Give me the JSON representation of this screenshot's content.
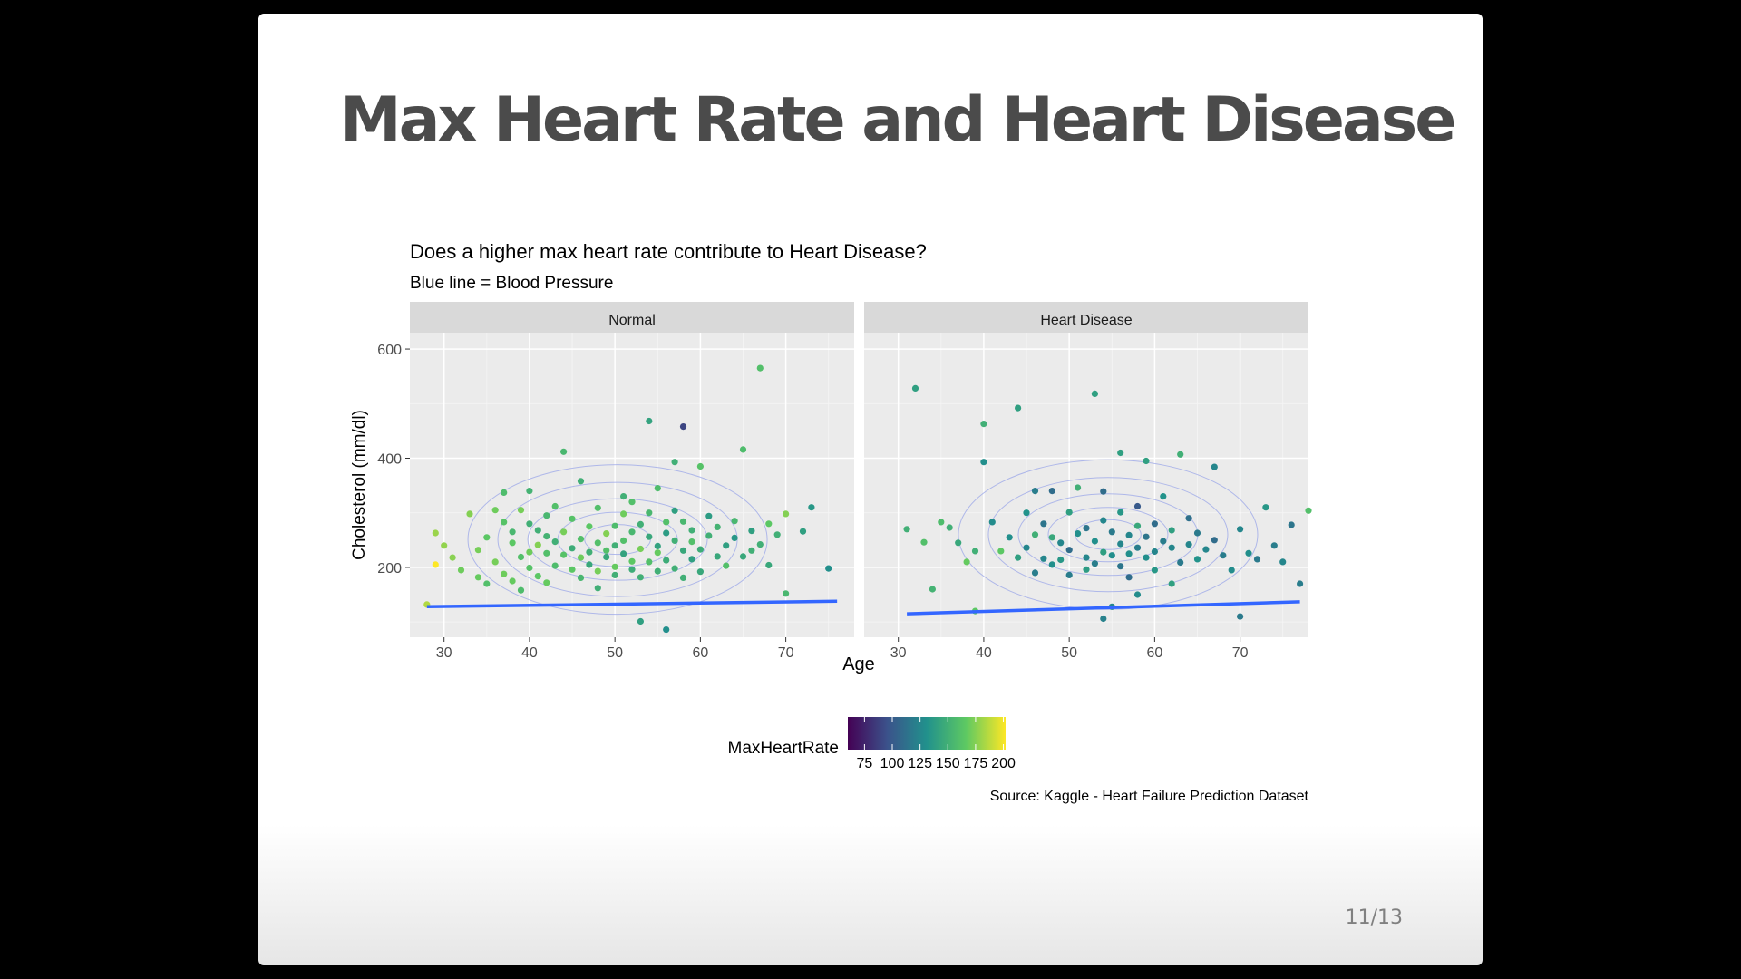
{
  "slide": {
    "title": "Max Heart Rate and Heart Disease",
    "page_number": "11/13"
  },
  "chart_data": {
    "type": "scatter",
    "title": "Does a higher max heart rate contribute to Heart Disease?",
    "subtitle": "Blue line = Blood Pressure",
    "xlabel": "Age",
    "ylabel": "Cholesterol (mm/dl)",
    "caption": "Source: Kaggle - Heart Failure Prediction Dataset",
    "xlim": [
      26,
      78
    ],
    "ylim": [
      72,
      630
    ],
    "x_ticks": [
      30,
      40,
      50,
      60,
      70
    ],
    "y_ticks": [
      200,
      400,
      600
    ],
    "grid": true,
    "panel_background": "#ebebeb",
    "strip_background": "#d9d9d9",
    "line_color": "#3366ff",
    "contour_color": "#9aa6e8",
    "legend": {
      "title": "MaxHeartRate",
      "position": "bottom",
      "min": 60,
      "max": 202,
      "ticks": [
        75,
        100,
        125,
        150,
        175,
        200
      ],
      "colors": [
        "#440154",
        "#3b528b",
        "#21918c",
        "#5ec962",
        "#fde725"
      ]
    },
    "panels": [
      {
        "label": "Normal",
        "bp_line": [
          [
            28,
            128
          ],
          [
            76,
            138
          ]
        ],
        "points": [
          [
            28,
            132,
            185
          ],
          [
            29,
            205,
            202
          ],
          [
            29,
            263,
            180
          ],
          [
            30,
            240,
            178
          ],
          [
            31,
            218,
            176
          ],
          [
            32,
            195,
            170
          ],
          [
            33,
            298,
            175
          ],
          [
            34,
            182,
            168
          ],
          [
            34,
            232,
            172
          ],
          [
            35,
            255,
            165
          ],
          [
            35,
            170,
            160
          ],
          [
            36,
            305,
            170
          ],
          [
            36,
            210,
            172
          ],
          [
            37,
            283,
            162
          ],
          [
            37,
            188,
            170
          ],
          [
            37,
            337,
            158
          ],
          [
            38,
            245,
            165
          ],
          [
            38,
            175,
            168
          ],
          [
            38,
            265,
            155
          ],
          [
            39,
            219,
            160
          ],
          [
            39,
            305,
            172
          ],
          [
            39,
            158,
            158
          ],
          [
            40,
            280,
            150
          ],
          [
            40,
            228,
            170
          ],
          [
            40,
            199,
            162
          ],
          [
            40,
            340,
            152
          ],
          [
            41,
            241,
            175
          ],
          [
            41,
            268,
            150
          ],
          [
            41,
            184,
            165
          ],
          [
            42,
            295,
            155
          ],
          [
            42,
            226,
            160
          ],
          [
            42,
            257,
            152
          ],
          [
            42,
            172,
            168
          ],
          [
            43,
            312,
            160
          ],
          [
            43,
            247,
            150
          ],
          [
            43,
            203,
            158
          ],
          [
            44,
            223,
            162
          ],
          [
            44,
            265,
            172
          ],
          [
            44,
            412,
            155
          ],
          [
            45,
            235,
            148
          ],
          [
            45,
            196,
            165
          ],
          [
            45,
            289,
            162
          ],
          [
            46,
            252,
            160
          ],
          [
            46,
            181,
            155
          ],
          [
            46,
            218,
            170
          ],
          [
            46,
            358,
            150
          ],
          [
            47,
            228,
            150
          ],
          [
            47,
            275,
            165
          ],
          [
            47,
            205,
            145
          ],
          [
            48,
            245,
            160
          ],
          [
            48,
            193,
            172
          ],
          [
            48,
            309,
            160
          ],
          [
            48,
            162,
            150
          ],
          [
            49,
            262,
            175
          ],
          [
            49,
            219,
            145
          ],
          [
            49,
            231,
            160
          ],
          [
            50,
            240,
            150
          ],
          [
            50,
            201,
            168
          ],
          [
            50,
            276,
            158
          ],
          [
            50,
            186,
            150
          ],
          [
            51,
            298,
            170
          ],
          [
            51,
            225,
            142
          ],
          [
            51,
            249,
            160
          ],
          [
            51,
            330,
            150
          ],
          [
            52,
            211,
            165
          ],
          [
            52,
            265,
            155
          ],
          [
            52,
            196,
            148
          ],
          [
            52,
            320,
            160
          ],
          [
            53,
            234,
            172
          ],
          [
            53,
            182,
            150
          ],
          [
            53,
            101,
            140
          ],
          [
            53,
            279,
            150
          ],
          [
            54,
            468,
            142
          ],
          [
            54,
            256,
            145
          ],
          [
            54,
            210,
            160
          ],
          [
            54,
            300,
            155
          ],
          [
            55,
            227,
            168
          ],
          [
            55,
            193,
            150
          ],
          [
            55,
            345,
            158
          ],
          [
            55,
            239,
            142
          ],
          [
            56,
            283,
            160
          ],
          [
            56,
            213,
            148
          ],
          [
            56,
            86,
            130
          ],
          [
            56,
            263,
            138
          ],
          [
            57,
            249,
            150
          ],
          [
            57,
            198,
            150
          ],
          [
            57,
            304,
            140
          ],
          [
            57,
            393,
            150
          ],
          [
            58,
            231,
            145
          ],
          [
            58,
            458,
            90
          ],
          [
            58,
            181,
            150
          ],
          [
            58,
            284,
            155
          ],
          [
            59,
            268,
            150
          ],
          [
            59,
            215,
            140
          ],
          [
            59,
            247,
            160
          ],
          [
            60,
            233,
            148
          ],
          [
            60,
            385,
            162
          ],
          [
            60,
            192,
            145
          ],
          [
            61,
            258,
            150
          ],
          [
            61,
            294,
            138
          ],
          [
            62,
            220,
            145
          ],
          [
            62,
            274,
            152
          ],
          [
            63,
            240,
            140
          ],
          [
            63,
            203,
            160
          ],
          [
            64,
            285,
            155
          ],
          [
            64,
            254,
            135
          ],
          [
            65,
            416,
            158
          ],
          [
            65,
            220,
            145
          ],
          [
            66,
            231,
            150
          ],
          [
            66,
            267,
            140
          ],
          [
            67,
            565,
            160
          ],
          [
            67,
            242,
            150
          ],
          [
            68,
            204,
            145
          ],
          [
            68,
            280,
            165
          ],
          [
            69,
            260,
            150
          ],
          [
            70,
            152,
            155
          ],
          [
            70,
            298,
            175
          ],
          [
            72,
            266,
            140
          ],
          [
            73,
            310,
            135
          ],
          [
            75,
            198,
            130
          ]
        ]
      },
      {
        "label": "Heart Disease",
        "bp_line": [
          [
            31,
            115
          ],
          [
            77,
            137
          ]
        ],
        "points": [
          [
            31,
            270,
            150
          ],
          [
            32,
            528,
            140
          ],
          [
            33,
            246,
            160
          ],
          [
            34,
            160,
            152
          ],
          [
            35,
            283,
            158
          ],
          [
            36,
            273,
            150
          ],
          [
            37,
            245,
            145
          ],
          [
            38,
            210,
            168
          ],
          [
            39,
            120,
            165
          ],
          [
            39,
            230,
            150
          ],
          [
            40,
            393,
            130
          ],
          [
            40,
            463,
            150
          ],
          [
            41,
            283,
            128
          ],
          [
            42,
            230,
            165
          ],
          [
            43,
            255,
            130
          ],
          [
            44,
            492,
            140
          ],
          [
            44,
            218,
            140
          ],
          [
            45,
            300,
            132
          ],
          [
            45,
            236,
            125
          ],
          [
            46,
            260,
            150
          ],
          [
            46,
            190,
            120
          ],
          [
            47,
            216,
            125
          ],
          [
            47,
            280,
            115
          ],
          [
            48,
            340,
            110
          ],
          [
            48,
            205,
            130
          ],
          [
            48,
            255,
            145
          ],
          [
            49,
            245,
            125
          ],
          [
            49,
            214,
            135
          ],
          [
            50,
            301,
            140
          ],
          [
            50,
            232,
            110
          ],
          [
            50,
            186,
            120
          ],
          [
            51,
            262,
            130
          ],
          [
            51,
            346,
            150
          ],
          [
            52,
            218,
            125
          ],
          [
            52,
            272,
            115
          ],
          [
            52,
            196,
            138
          ],
          [
            53,
            518,
            140
          ],
          [
            53,
            248,
            130
          ],
          [
            53,
            207,
            120
          ],
          [
            54,
            286,
            125
          ],
          [
            54,
            228,
            140
          ],
          [
            54,
            339,
            110
          ],
          [
            55,
            222,
            130
          ],
          [
            55,
            265,
            118
          ],
          [
            55,
            128,
            125
          ],
          [
            56,
            243,
            125
          ],
          [
            56,
            410,
            140
          ],
          [
            56,
            202,
            115
          ],
          [
            56,
            301,
            135
          ],
          [
            57,
            259,
            125
          ],
          [
            57,
            225,
            130
          ],
          [
            57,
            182,
            110
          ],
          [
            58,
            236,
            120
          ],
          [
            58,
            276,
            145
          ],
          [
            58,
            312,
            100
          ],
          [
            59,
            218,
            130
          ],
          [
            59,
            256,
            115
          ],
          [
            59,
            395,
            140
          ],
          [
            60,
            229,
            125
          ],
          [
            60,
            280,
            110
          ],
          [
            60,
            195,
            135
          ],
          [
            61,
            248,
            120
          ],
          [
            61,
            330,
            132
          ],
          [
            62,
            236,
            125
          ],
          [
            62,
            268,
            140
          ],
          [
            63,
            209,
            118
          ],
          [
            63,
            407,
            150
          ],
          [
            64,
            242,
            125
          ],
          [
            64,
            290,
            112
          ],
          [
            65,
            215,
            132
          ],
          [
            65,
            263,
            118
          ],
          [
            66,
            233,
            125
          ],
          [
            67,
            384,
            125
          ],
          [
            67,
            250,
            110
          ],
          [
            68,
            222,
            120
          ],
          [
            69,
            195,
            128
          ],
          [
            70,
            270,
            125
          ],
          [
            71,
            226,
            130
          ],
          [
            72,
            215,
            118
          ],
          [
            73,
            310,
            135
          ],
          [
            74,
            240,
            120
          ],
          [
            75,
            210,
            125
          ],
          [
            76,
            278,
            115
          ],
          [
            77,
            170,
            120
          ],
          [
            78,
            304,
            160
          ],
          [
            70,
            110,
            118
          ],
          [
            54,
            106,
            122
          ],
          [
            58,
            150,
            128
          ],
          [
            62,
            170,
            140
          ],
          [
            46,
            340,
            120
          ]
        ]
      }
    ]
  }
}
